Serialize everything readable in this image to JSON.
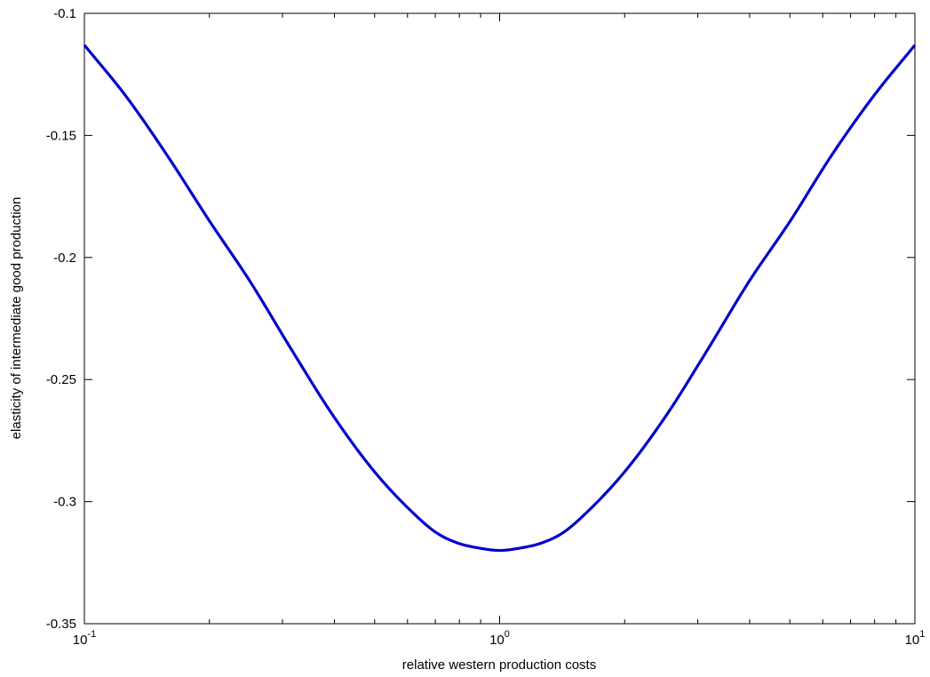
{
  "chart_data": {
    "type": "line",
    "title": "",
    "xlabel": "relative western production costs",
    "ylabel": "elasticity of intermediate good production",
    "x_scale": "log",
    "xlim": [
      0.1,
      10
    ],
    "ylim": [
      -0.35,
      -0.1
    ],
    "grid": false,
    "x_ticks": [
      {
        "value": 0.1,
        "base": "10",
        "exp": "-1"
      },
      {
        "value": 1,
        "base": "10",
        "exp": "0"
      },
      {
        "value": 10,
        "base": "10",
        "exp": "1"
      }
    ],
    "y_ticks": [
      {
        "value": -0.1,
        "label": "-0.1"
      },
      {
        "value": -0.15,
        "label": "-0.15"
      },
      {
        "value": -0.2,
        "label": "-0.2"
      },
      {
        "value": -0.25,
        "label": "-0.25"
      },
      {
        "value": -0.3,
        "label": "-0.3"
      },
      {
        "value": -0.35,
        "label": "-0.35"
      }
    ],
    "series": [
      {
        "color": "#0000cc",
        "x": [
          0.1,
          0.126,
          0.158,
          0.2,
          0.251,
          0.316,
          0.398,
          0.501,
          0.631,
          0.708,
          0.794,
          0.891,
          1.0,
          1.122,
          1.259,
          1.413,
          1.585,
          1.995,
          2.512,
          3.162,
          3.981,
          5.012,
          6.31,
          7.943,
          10.0
        ],
        "y": [
          -0.113,
          -0.134,
          -0.158,
          -0.185,
          -0.21,
          -0.238,
          -0.265,
          -0.288,
          -0.306,
          -0.313,
          -0.317,
          -0.319,
          -0.32,
          -0.319,
          -0.317,
          -0.313,
          -0.306,
          -0.288,
          -0.265,
          -0.238,
          -0.21,
          -0.185,
          -0.158,
          -0.134,
          -0.113
        ]
      }
    ]
  }
}
